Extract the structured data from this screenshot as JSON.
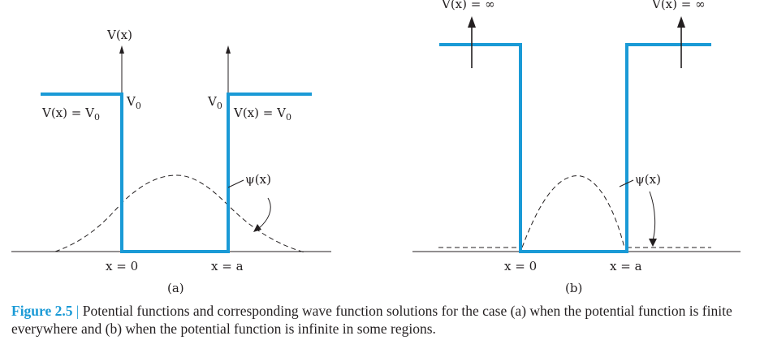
{
  "panel_a": {
    "axis_label": "V(x)",
    "left_region_label": "V(x) = V",
    "right_region_label": "V(x) = V",
    "v0_left": "V",
    "v0_right": "V",
    "subscript": "0",
    "psi_label": "ψ(x)",
    "x_zero_label": "x = 0",
    "x_a_label": "x = a",
    "panel_label": "(a)"
  },
  "panel_b": {
    "left_infinite_label": "V(x) = ∞",
    "right_infinite_label": "V(x) = ∞",
    "psi_label": "ψ(x)",
    "x_zero_label": "x = 0",
    "x_a_label": "x = a",
    "panel_label": "(b)"
  },
  "caption": {
    "figure_label": "Figure 2.5",
    "separator": "|",
    "text": " Potential functions and corresponding wave function solutions for the case (a) when the potential function is finite everywhere and (b) when the potential function is infinite in some regions."
  },
  "colors": {
    "potential": "#1a9ad6",
    "ink": "#231f20",
    "caption_accent": "#1a9ad6"
  }
}
